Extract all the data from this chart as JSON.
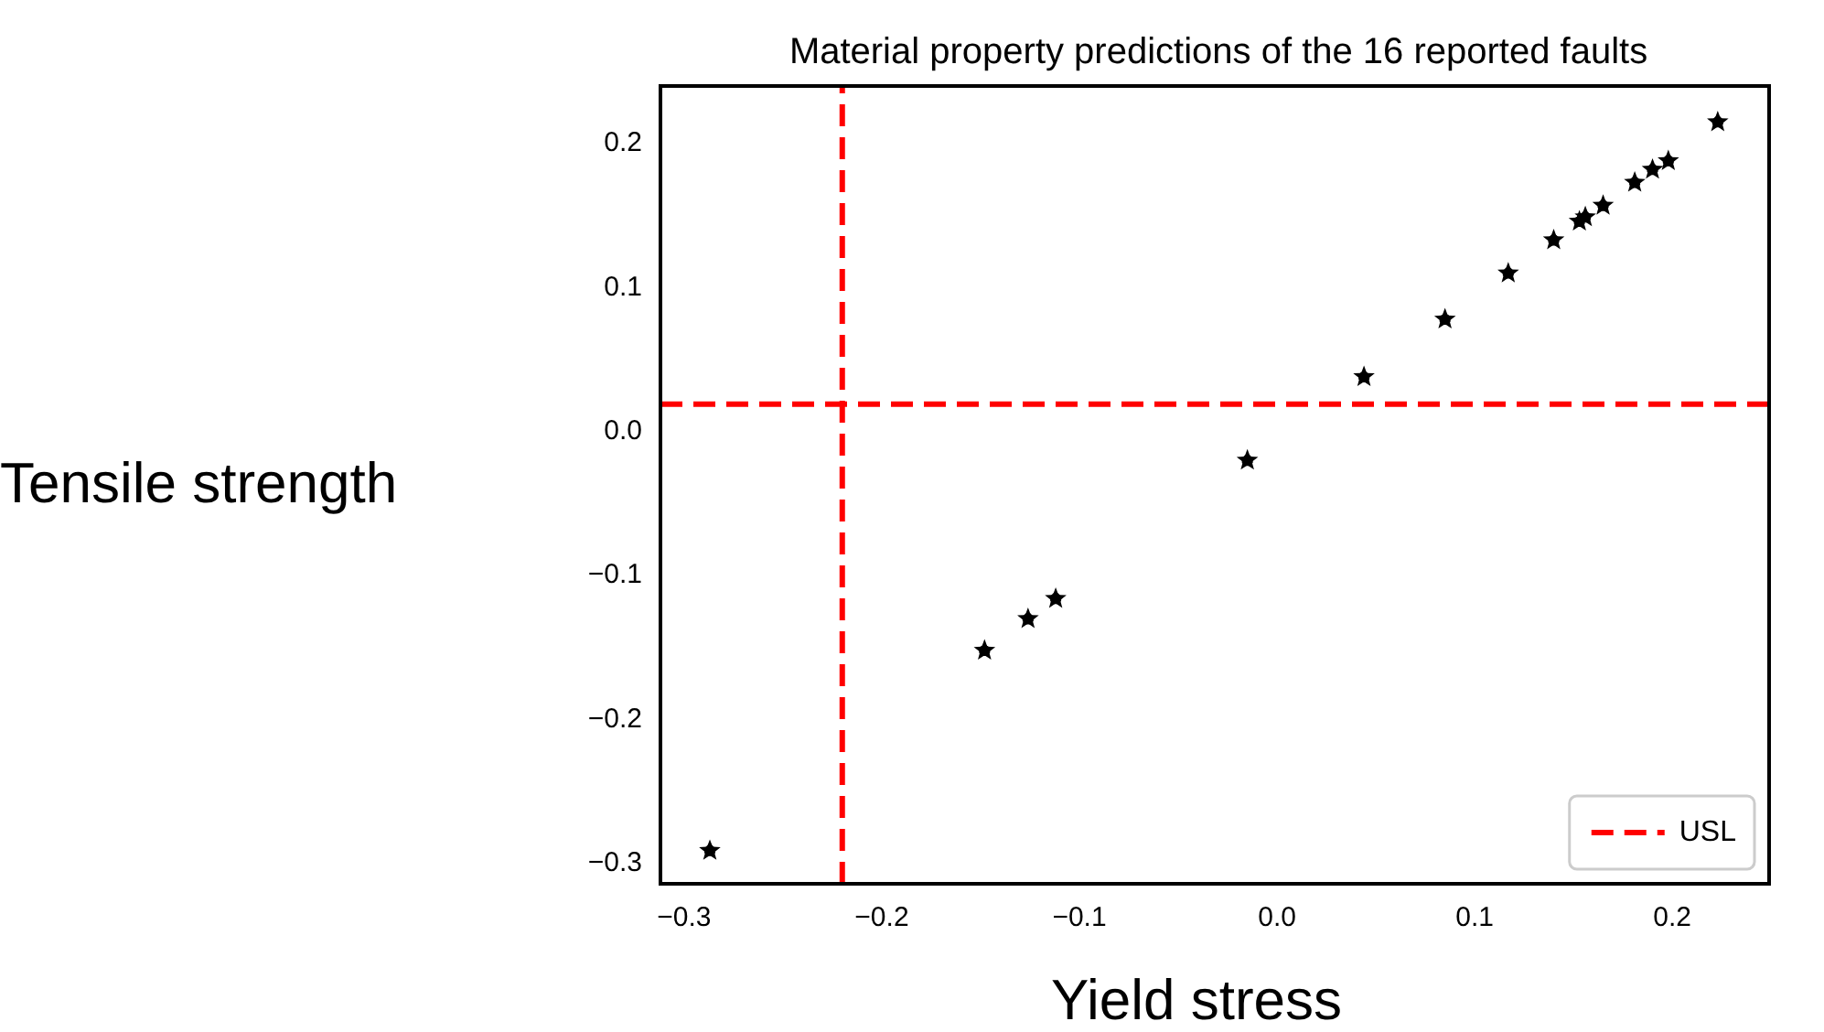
{
  "chart_data": {
    "type": "scatter",
    "title": "Material property predictions of the 16 reported faults",
    "xlabel": "Yield stress",
    "ylabel": "Tensile strength",
    "x": [
      -0.287,
      -0.148,
      -0.126,
      -0.112,
      -0.015,
      0.044,
      0.085,
      0.117,
      0.14,
      0.153,
      0.156,
      0.165,
      0.181,
      0.19,
      0.198,
      0.223
    ],
    "series": [
      {
        "color": "#000000",
        "values": [
          -0.291,
          -0.152,
          -0.13,
          -0.116,
          -0.02,
          0.038,
          0.078,
          0.11,
          0.133,
          0.146,
          0.149,
          0.157,
          0.173,
          0.182,
          0.188,
          0.215
        ]
      },
      {
        "type": "line",
        "name": "USL",
        "color": "#ff0000",
        "marker": "none",
        "x": [
          -0.22,
          -0.22
        ],
        "values": [
          -0.314,
          0.24
        ]
      }
    ],
    "line_style": "dashed",
    "marker": "star",
    "xlim": [
      -0.312,
      0.249
    ],
    "ylim": [
      -0.314,
      0.24
    ],
    "xticks": [
      {
        "value": -0.3,
        "label": "−0.3"
      },
      {
        "value": -0.2,
        "label": "−0.2"
      },
      {
        "value": -0.1,
        "label": "−0.1"
      },
      {
        "value": 0,
        "label": "0.0"
      },
      0.1,
      0.2
    ],
    "yticks": [
      {
        "value": -0.3,
        "label": "−0.3"
      },
      {
        "value": -0.2,
        "label": "−0.2"
      },
      {
        "value": -0.1,
        "label": "−0.1"
      },
      {
        "value": 0,
        "label": "0.0"
      },
      0.1,
      0.2
    ],
    "ref_lines": [
      {
        "axis": "y",
        "value": 0.019,
        "color": "#ff0000",
        "line_style": "dashed"
      }
    ],
    "legend": "bottom right",
    "grid": false
  }
}
